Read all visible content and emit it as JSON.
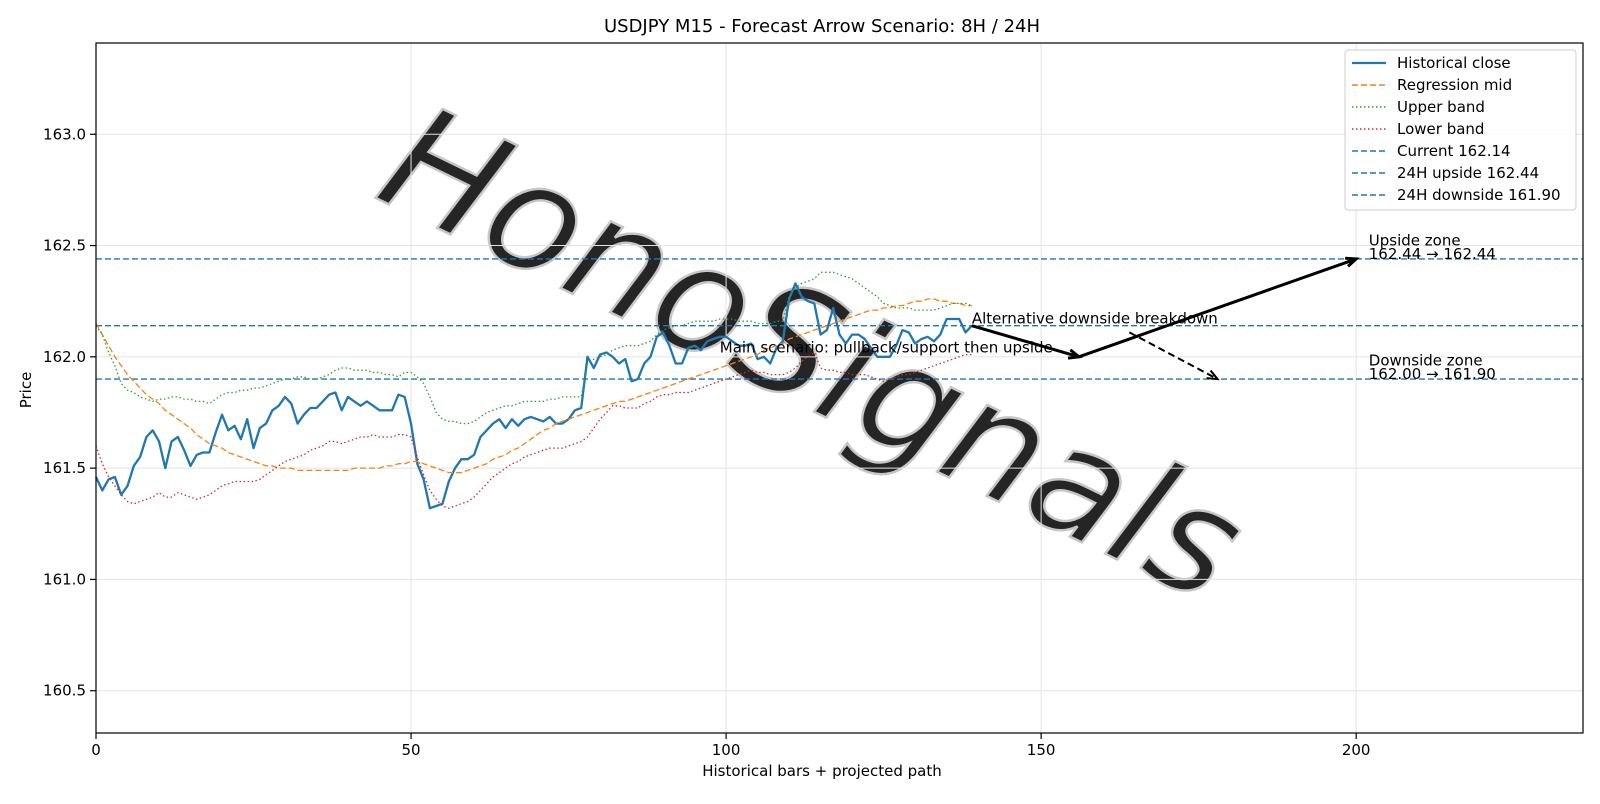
{
  "chart_data": {
    "type": "line",
    "title": "USDJPY M15 - Forecast Arrow Scenario: 8H / 24H",
    "xlabel": "Historical bars + projected path",
    "ylabel": "Price",
    "xlim": [
      0,
      236
    ],
    "ylim": [
      160.31,
      163.41
    ],
    "xticks": [
      0,
      50,
      100,
      150,
      200
    ],
    "yticks": [
      160.5,
      161.0,
      161.5,
      162.0,
      162.5,
      163.0
    ],
    "grid": true,
    "legend_position": "top-right",
    "watermark": "HonoSignals",
    "series": [
      {
        "name": "Historical close",
        "style": "solid",
        "color": "#1f77b4",
        "values": [
          161.46,
          161.4,
          161.45,
          161.46,
          161.38,
          161.42,
          161.51,
          161.55,
          161.64,
          161.67,
          161.62,
          161.5,
          161.62,
          161.64,
          161.58,
          161.51,
          161.56,
          161.57,
          161.57,
          161.66,
          161.74,
          161.67,
          161.69,
          161.63,
          161.72,
          161.59,
          161.68,
          161.7,
          161.76,
          161.78,
          161.82,
          161.79,
          161.7,
          161.74,
          161.77,
          161.77,
          161.8,
          161.83,
          161.84,
          161.76,
          161.82,
          161.8,
          161.78,
          161.8,
          161.78,
          161.76,
          161.76,
          161.76,
          161.83,
          161.82,
          161.7,
          161.52,
          161.45,
          161.32,
          161.33,
          161.34,
          161.44,
          161.5,
          161.54,
          161.54,
          161.56,
          161.64,
          161.67,
          161.7,
          161.72,
          161.68,
          161.72,
          161.69,
          161.72,
          161.73,
          161.72,
          161.71,
          161.73,
          161.7,
          161.7,
          161.72,
          161.76,
          161.77,
          162.0,
          161.95,
          162.01,
          162.02,
          162.0,
          161.97,
          161.99,
          161.89,
          161.9,
          161.97,
          162.0,
          162.09,
          162.11,
          162.05,
          161.97,
          161.97,
          162.04,
          162.05,
          162.03,
          162.07,
          162.08,
          162.09,
          162.09,
          162.07,
          162.05,
          162.05,
          162.06,
          161.99,
          162.0,
          161.97,
          162.04,
          162.07,
          162.26,
          162.33,
          162.27,
          162.25,
          162.24,
          162.1,
          162.12,
          162.22,
          162.1,
          162.06,
          162.1,
          162.1,
          162.08,
          162.04,
          162.0,
          162.0,
          162.0,
          162.05,
          162.12,
          162.11,
          162.06,
          162.08,
          162.09,
          162.07,
          162.1,
          162.17,
          162.17,
          162.17,
          162.11,
          162.14
        ]
      },
      {
        "name": "Regression mid",
        "style": "dashed",
        "color": "#ff7f0e",
        "values": [
          162.15,
          162.1,
          162.05,
          162.0,
          161.96,
          161.92,
          161.89,
          161.86,
          161.83,
          161.81,
          161.79,
          161.76,
          161.74,
          161.72,
          161.7,
          161.68,
          161.65,
          161.63,
          161.61,
          161.6,
          161.59,
          161.57,
          161.56,
          161.55,
          161.54,
          161.53,
          161.52,
          161.51,
          161.51,
          161.5,
          161.5,
          161.5,
          161.49,
          161.49,
          161.49,
          161.49,
          161.49,
          161.49,
          161.49,
          161.49,
          161.49,
          161.5,
          161.5,
          161.5,
          161.5,
          161.5,
          161.51,
          161.51,
          161.52,
          161.52,
          161.53,
          161.53,
          161.52,
          161.51,
          161.5,
          161.49,
          161.48,
          161.48,
          161.48,
          161.49,
          161.5,
          161.51,
          161.52,
          161.54,
          161.55,
          161.56,
          161.58,
          161.59,
          161.61,
          161.63,
          161.65,
          161.67,
          161.68,
          161.7,
          161.71,
          161.72,
          161.73,
          161.74,
          161.75,
          161.76,
          161.77,
          161.78,
          161.79,
          161.8,
          161.8,
          161.81,
          161.82,
          161.83,
          161.84,
          161.85,
          161.86,
          161.87,
          161.88,
          161.89,
          161.9,
          161.91,
          161.92,
          161.93,
          161.94,
          161.95,
          161.96,
          161.97,
          161.98,
          161.99,
          162.0,
          162.01,
          162.03,
          162.04,
          162.05,
          162.06,
          162.08,
          162.09,
          162.1,
          162.11,
          162.12,
          162.13,
          162.14,
          162.15,
          162.16,
          162.17,
          162.18,
          162.19,
          162.2,
          162.21,
          162.21,
          162.22,
          162.22,
          162.23,
          162.23,
          162.24,
          162.25,
          162.25,
          162.26,
          162.26,
          162.25,
          162.25,
          162.24,
          162.24,
          162.23,
          162.23
        ]
      },
      {
        "name": "Upper band",
        "style": "dotted",
        "color": "#2ca02c",
        "values": [
          162.14,
          162.1,
          162.02,
          161.96,
          161.88,
          161.85,
          161.84,
          161.82,
          161.81,
          161.8,
          161.81,
          161.81,
          161.82,
          161.82,
          161.81,
          161.81,
          161.8,
          161.8,
          161.79,
          161.81,
          161.83,
          161.84,
          161.84,
          161.85,
          161.85,
          161.86,
          161.86,
          161.87,
          161.88,
          161.89,
          161.9,
          161.9,
          161.91,
          161.91,
          161.9,
          161.9,
          161.91,
          161.92,
          161.94,
          161.95,
          161.95,
          161.94,
          161.94,
          161.94,
          161.93,
          161.93,
          161.92,
          161.92,
          161.91,
          161.93,
          161.93,
          161.91,
          161.88,
          161.82,
          161.75,
          161.72,
          161.71,
          161.71,
          161.7,
          161.7,
          161.71,
          161.73,
          161.75,
          161.76,
          161.77,
          161.78,
          161.78,
          161.79,
          161.8,
          161.8,
          161.8,
          161.8,
          161.81,
          161.81,
          161.82,
          161.82,
          161.82,
          161.82,
          161.97,
          161.99,
          162.0,
          162.01,
          162.03,
          162.04,
          162.05,
          162.05,
          162.05,
          162.06,
          162.07,
          162.1,
          162.12,
          162.13,
          162.14,
          162.14,
          162.15,
          162.16,
          162.16,
          162.16,
          162.16,
          162.17,
          162.17,
          162.17,
          162.16,
          162.16,
          162.16,
          162.15,
          162.15,
          162.15,
          162.16,
          162.16,
          162.27,
          162.31,
          162.33,
          162.34,
          162.35,
          162.38,
          162.38,
          162.38,
          162.37,
          162.36,
          162.35,
          162.33,
          162.31,
          162.29,
          162.27,
          162.24,
          162.23,
          162.22,
          162.22,
          162.22,
          162.21,
          162.21,
          162.21,
          162.21,
          162.22,
          162.23,
          162.24,
          162.24,
          162.24,
          162.23
        ]
      },
      {
        "name": "Lower band",
        "style": "dotted",
        "color": "#d62728",
        "values": [
          161.6,
          161.52,
          161.46,
          161.42,
          161.38,
          161.35,
          161.34,
          161.35,
          161.36,
          161.37,
          161.39,
          161.37,
          161.37,
          161.39,
          161.38,
          161.37,
          161.36,
          161.37,
          161.38,
          161.4,
          161.42,
          161.43,
          161.44,
          161.44,
          161.44,
          161.44,
          161.45,
          161.47,
          161.49,
          161.51,
          161.53,
          161.54,
          161.55,
          161.56,
          161.58,
          161.59,
          161.6,
          161.62,
          161.62,
          161.61,
          161.62,
          161.63,
          161.64,
          161.64,
          161.65,
          161.64,
          161.64,
          161.64,
          161.65,
          161.65,
          161.64,
          161.55,
          161.47,
          161.4,
          161.36,
          161.33,
          161.32,
          161.33,
          161.34,
          161.35,
          161.37,
          161.4,
          161.43,
          161.46,
          161.48,
          161.5,
          161.52,
          161.53,
          161.55,
          161.56,
          161.57,
          161.58,
          161.59,
          161.59,
          161.59,
          161.6,
          161.61,
          161.62,
          161.64,
          161.68,
          161.72,
          161.75,
          161.78,
          161.78,
          161.77,
          161.77,
          161.77,
          161.79,
          161.8,
          161.82,
          161.83,
          161.83,
          161.84,
          161.84,
          161.84,
          161.85,
          161.86,
          161.87,
          161.88,
          161.89,
          161.9,
          161.91,
          161.92,
          161.93,
          161.94,
          161.93,
          161.93,
          161.92,
          161.92,
          161.92,
          161.93,
          161.95,
          161.98,
          162.0,
          162.02,
          161.95,
          161.94,
          161.94,
          161.93,
          161.93,
          161.92,
          161.92,
          161.92,
          161.91,
          161.9,
          161.89,
          161.9,
          161.91,
          161.92,
          161.92,
          161.93,
          161.94,
          161.95,
          161.96,
          161.97,
          161.98,
          161.99,
          162.0,
          162.01,
          162.01
        ]
      }
    ],
    "hlines": [
      {
        "name": "Current 162.14",
        "y": 162.14,
        "style": "dashed",
        "color": "#1f77b4"
      },
      {
        "name": "24H upside 162.44",
        "y": 162.44,
        "style": "dashed",
        "color": "#1f77b4"
      },
      {
        "name": "24H downside 161.90",
        "y": 161.9,
        "style": "dashed",
        "color": "#1f77b4"
      }
    ],
    "arrows": [
      {
        "from": [
          139,
          162.14
        ],
        "to": [
          156,
          162.0
        ],
        "style": "solid",
        "width": "bold"
      },
      {
        "from": [
          156,
          162.0
        ],
        "to": [
          200,
          162.44
        ],
        "style": "solid",
        "width": "bold"
      },
      {
        "from": [
          164,
          162.11
        ],
        "to": [
          178,
          161.9
        ],
        "style": "dashed",
        "width": "medium"
      }
    ],
    "annotations": [
      {
        "id": "alt",
        "text": "Alternative downside breakdown",
        "x": 139,
        "y": 162.15
      },
      {
        "id": "main",
        "text": "Main scenario: pullback/support then upside",
        "x": 99,
        "y": 162.02
      },
      {
        "id": "up1",
        "text": "Upside zone",
        "x": 202,
        "y": 162.5
      },
      {
        "id": "up2",
        "text": "162.44 → 162.44",
        "x": 202,
        "y": 162.44
      },
      {
        "id": "dn1",
        "text": "Downside zone",
        "x": 202,
        "y": 161.96
      },
      {
        "id": "dn2",
        "text": "162.00 → 161.90",
        "x": 202,
        "y": 161.9
      }
    ]
  }
}
